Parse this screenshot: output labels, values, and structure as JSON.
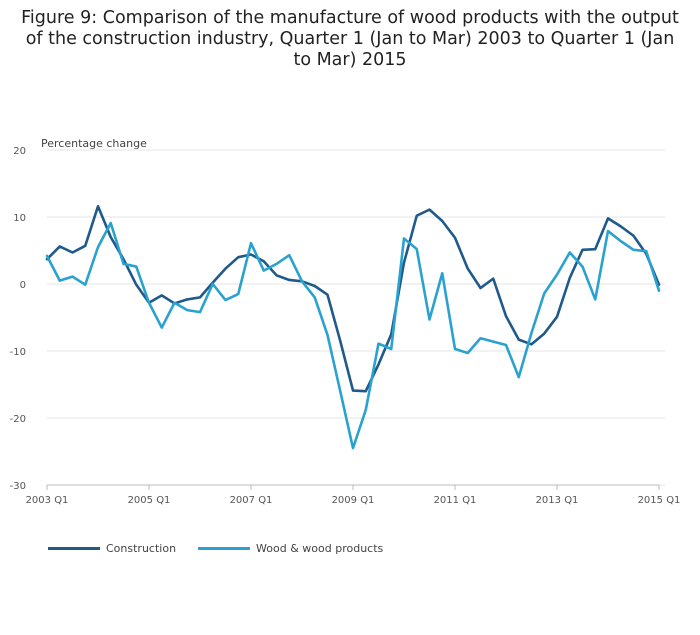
{
  "title": "Figure 9: Comparison of the manufacture of wood products with the output of the construction industry, Quarter 1 (Jan to Mar) 2003 to Quarter 1 (Jan to Mar) 2015",
  "chart_data": {
    "type": "line",
    "title": "Figure 9: Comparison of the manufacture of wood products with the output of the construction industry, Quarter 1 (Jan to Mar) 2003 to Quarter 1 (Jan to Mar) 2015",
    "ylabel": "Percentage change",
    "xlabel": "",
    "ylim": [
      -30,
      20
    ],
    "yticks": [
      "20",
      "10",
      "0",
      "-10",
      "-20",
      "-30"
    ],
    "ytick_values": [
      20,
      10,
      0,
      -10,
      -20,
      -30
    ],
    "xticks": [
      "2003 Q1",
      "2005 Q1",
      "2007 Q1",
      "2009 Q1",
      "2011 Q1",
      "2013 Q1",
      "2015 Q1"
    ],
    "xtick_quarter_index": [
      0,
      8,
      16,
      24,
      32,
      40,
      48
    ],
    "grid": "horizontal",
    "legend_position": "bottom-left",
    "x": [
      "2003 Q1",
      "2003 Q2",
      "2003 Q3",
      "2003 Q4",
      "2004 Q1",
      "2004 Q2",
      "2004 Q3",
      "2004 Q4",
      "2005 Q1",
      "2005 Q2",
      "2005 Q3",
      "2005 Q4",
      "2006 Q1",
      "2006 Q2",
      "2006 Q3",
      "2006 Q4",
      "2007 Q1",
      "2007 Q2",
      "2007 Q3",
      "2007 Q4",
      "2008 Q1",
      "2008 Q2",
      "2008 Q3",
      "2008 Q4",
      "2009 Q1",
      "2009 Q2",
      "2009 Q3",
      "2009 Q4",
      "2010 Q1",
      "2010 Q2",
      "2010 Q3",
      "2010 Q4",
      "2011 Q1",
      "2011 Q2",
      "2011 Q3",
      "2011 Q4",
      "2012 Q1",
      "2012 Q2",
      "2012 Q3",
      "2012 Q4",
      "2013 Q1",
      "2013 Q2",
      "2013 Q3",
      "2013 Q4",
      "2014 Q1",
      "2014 Q2",
      "2014 Q3",
      "2014 Q4",
      "2015 Q1"
    ],
    "series": [
      {
        "name": "Construction",
        "color": "#1f5a8b",
        "values": [
          3.7,
          5.6,
          4.7,
          5.7,
          11.6,
          7.0,
          3.7,
          -0.1,
          -2.8,
          -1.7,
          -2.9,
          -2.3,
          -2.0,
          0.2,
          2.3,
          4.0,
          4.4,
          3.4,
          1.3,
          0.6,
          0.4,
          -0.3,
          -1.6,
          -8.5,
          -15.9,
          -16.0,
          -12.0,
          -7.5,
          3.2,
          10.2,
          11.1,
          9.4,
          6.9,
          2.3,
          -0.6,
          0.8,
          -4.8,
          -8.3,
          -9.0,
          -7.4,
          -4.9,
          0.9,
          5.1,
          5.2,
          9.8,
          8.6,
          7.2,
          4.5,
          -0.1
        ]
      },
      {
        "name": "Wood & wood products",
        "color": "#2aa2cf",
        "values": [
          4.2,
          0.5,
          1.1,
          -0.1,
          5.5,
          9.1,
          3.0,
          2.6,
          -2.8,
          -6.5,
          -2.8,
          -3.9,
          -4.2,
          0.0,
          -2.4,
          -1.5,
          6.1,
          2.0,
          3.0,
          4.3,
          0.4,
          -2.0,
          -7.6,
          -16.0,
          -24.5,
          -18.8,
          -8.9,
          -9.7,
          6.8,
          5.2,
          -5.3,
          1.6,
          -9.7,
          -10.3,
          -8.1,
          -8.6,
          -9.1,
          -13.9,
          -7.3,
          -1.4,
          1.4,
          4.7,
          2.6,
          -2.3,
          7.9,
          6.4,
          5.1,
          4.9,
          -1.0
        ]
      }
    ]
  }
}
